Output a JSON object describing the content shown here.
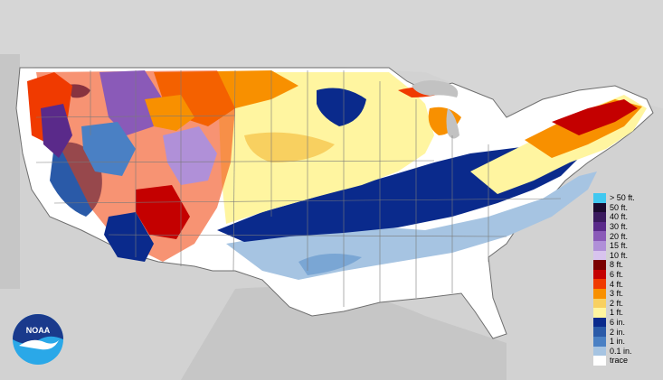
{
  "map": {
    "region": "Contiguous United States",
    "background_color": "#c9c9c9",
    "land_outside_color": "#d0d0d0",
    "water_color": "#c9c9c9",
    "boundary_color": "#6e6e6e"
  },
  "legend": {
    "items": [
      {
        "label": "> 50 ft.",
        "color": "#40c8f0"
      },
      {
        "label": "50 ft.",
        "color": "#1a0a2e"
      },
      {
        "label": "40 ft.",
        "color": "#3a1a5e"
      },
      {
        "label": "30 ft.",
        "color": "#5a2a8a"
      },
      {
        "label": "20 ft.",
        "color": "#8a5ab8"
      },
      {
        "label": "15 ft.",
        "color": "#b090d8"
      },
      {
        "label": "10 ft.",
        "color": "#d8c4ee"
      },
      {
        "label": "8 ft.",
        "color": "#7a0000"
      },
      {
        "label": "6 ft.",
        "color": "#c40000"
      },
      {
        "label": "4 ft.",
        "color": "#f03a00"
      },
      {
        "label": "3 ft.",
        "color": "#f89000"
      },
      {
        "label": "2 ft.",
        "color": "#f8d060"
      },
      {
        "label": "1 ft.",
        "color": "#fff5a0"
      },
      {
        "label": "6 in.",
        "color": "#0a2a8c"
      },
      {
        "label": "2 in.",
        "color": "#2a5aa8"
      },
      {
        "label": "1 in.",
        "color": "#4a80c4"
      },
      {
        "label": "0.1 in.",
        "color": "#a6c4e2"
      },
      {
        "label": "trace",
        "color": "#ffffff"
      }
    ]
  },
  "logo": {
    "text": "NOAA",
    "colors": {
      "dark": "#1a3a8c",
      "light": "#2aa8e8",
      "bird": "#ffffff"
    }
  }
}
